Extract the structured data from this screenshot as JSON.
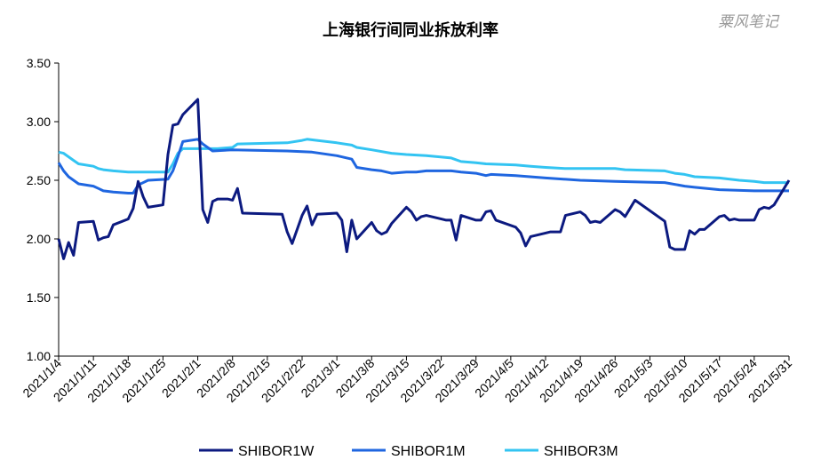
{
  "watermark": "粟风笔记",
  "colors": {
    "SHIBOR1W": "#0c1a80",
    "SHIBOR1M": "#1f66e0",
    "SHIBOR3M": "#33c4f2",
    "axis": "#000000"
  },
  "chart_data": {
    "type": "line",
    "title": "上海银行间同业拆放利率",
    "xlabel": "",
    "ylabel": "",
    "ylim": [
      1.0,
      3.5
    ],
    "yticks": [
      "1.00",
      "1.50",
      "2.00",
      "2.50",
      "3.00",
      "3.50"
    ],
    "xlim": [
      "2021-01-04",
      "2021-05-31"
    ],
    "xticks": [
      "2021/1/4",
      "2021/1/11",
      "2021/1/18",
      "2021/1/25",
      "2021/2/1",
      "2021/2/8",
      "2021/2/15",
      "2021/2/22",
      "2021/3/1",
      "2021/3/8",
      "2021/3/15",
      "2021/3/22",
      "2021/3/29",
      "2021/4/5",
      "2021/4/12",
      "2021/4/19",
      "2021/4/26",
      "2021/5/3",
      "2021/5/10",
      "2021/5/17",
      "2021/5/24",
      "2021/5/31"
    ],
    "grid": false,
    "legend": "bottom",
    "series": [
      {
        "name": "SHIBOR1W",
        "points": [
          [
            "2021-01-04",
            2.0
          ],
          [
            "2021-01-05",
            1.83
          ],
          [
            "2021-01-06",
            1.97
          ],
          [
            "2021-01-07",
            1.86
          ],
          [
            "2021-01-08",
            2.14
          ],
          [
            "2021-01-11",
            2.15
          ],
          [
            "2021-01-12",
            1.99
          ],
          [
            "2021-01-13",
            2.01
          ],
          [
            "2021-01-14",
            2.02
          ],
          [
            "2021-01-15",
            2.12
          ],
          [
            "2021-01-18",
            2.17
          ],
          [
            "2021-01-19",
            2.26
          ],
          [
            "2021-01-20",
            2.49
          ],
          [
            "2021-01-21",
            2.36
          ],
          [
            "2021-01-22",
            2.27
          ],
          [
            "2021-01-25",
            2.29
          ],
          [
            "2021-01-26",
            2.72
          ],
          [
            "2021-01-27",
            2.97
          ],
          [
            "2021-01-28",
            2.98
          ],
          [
            "2021-01-29",
            3.06
          ],
          [
            "2021-02-01",
            3.19
          ],
          [
            "2021-02-02",
            2.25
          ],
          [
            "2021-02-03",
            2.14
          ],
          [
            "2021-02-04",
            2.32
          ],
          [
            "2021-02-05",
            2.34
          ],
          [
            "2021-02-07",
            2.34
          ],
          [
            "2021-02-08",
            2.33
          ],
          [
            "2021-02-09",
            2.43
          ],
          [
            "2021-02-10",
            2.22
          ],
          [
            "2021-02-18",
            2.21
          ],
          [
            "2021-02-19",
            2.06
          ],
          [
            "2021-02-20",
            1.96
          ],
          [
            "2021-02-22",
            2.2
          ],
          [
            "2021-02-23",
            2.28
          ],
          [
            "2021-02-24",
            2.12
          ],
          [
            "2021-02-25",
            2.21
          ],
          [
            "2021-03-01",
            2.22
          ],
          [
            "2021-03-02",
            2.16
          ],
          [
            "2021-03-03",
            1.89
          ],
          [
            "2021-03-04",
            2.16
          ],
          [
            "2021-03-05",
            2.0
          ],
          [
            "2021-03-08",
            2.14
          ],
          [
            "2021-03-09",
            2.07
          ],
          [
            "2021-03-10",
            2.04
          ],
          [
            "2021-03-11",
            2.06
          ],
          [
            "2021-03-12",
            2.13
          ],
          [
            "2021-03-15",
            2.27
          ],
          [
            "2021-03-16",
            2.23
          ],
          [
            "2021-03-17",
            2.16
          ],
          [
            "2021-03-18",
            2.19
          ],
          [
            "2021-03-19",
            2.2
          ],
          [
            "2021-03-22",
            2.17
          ],
          [
            "2021-03-23",
            2.16
          ],
          [
            "2021-03-24",
            2.16
          ],
          [
            "2021-03-25",
            1.99
          ],
          [
            "2021-03-26",
            2.2
          ],
          [
            "2021-03-29",
            2.16
          ],
          [
            "2021-03-30",
            2.16
          ],
          [
            "2021-03-31",
            2.23
          ],
          [
            "2021-04-01",
            2.24
          ],
          [
            "2021-04-02",
            2.16
          ],
          [
            "2021-04-06",
            2.1
          ],
          [
            "2021-04-07",
            2.05
          ],
          [
            "2021-04-08",
            1.94
          ],
          [
            "2021-04-09",
            2.02
          ],
          [
            "2021-04-12",
            2.05
          ],
          [
            "2021-04-13",
            2.06
          ],
          [
            "2021-04-14",
            2.06
          ],
          [
            "2021-04-15",
            2.06
          ],
          [
            "2021-04-16",
            2.2
          ],
          [
            "2021-04-19",
            2.23
          ],
          [
            "2021-04-20",
            2.2
          ],
          [
            "2021-04-21",
            2.14
          ],
          [
            "2021-04-22",
            2.15
          ],
          [
            "2021-04-23",
            2.14
          ],
          [
            "2021-04-26",
            2.25
          ],
          [
            "2021-04-27",
            2.23
          ],
          [
            "2021-04-28",
            2.19
          ],
          [
            "2021-04-29",
            2.26
          ],
          [
            "2021-04-30",
            2.33
          ],
          [
            "2021-05-06",
            2.15
          ],
          [
            "2021-05-07",
            1.93
          ],
          [
            "2021-05-08",
            1.91
          ],
          [
            "2021-05-10",
            1.91
          ],
          [
            "2021-05-11",
            2.07
          ],
          [
            "2021-05-12",
            2.04
          ],
          [
            "2021-05-13",
            2.08
          ],
          [
            "2021-05-14",
            2.08
          ],
          [
            "2021-05-17",
            2.19
          ],
          [
            "2021-05-18",
            2.2
          ],
          [
            "2021-05-19",
            2.16
          ],
          [
            "2021-05-20",
            2.17
          ],
          [
            "2021-05-21",
            2.16
          ],
          [
            "2021-05-24",
            2.16
          ],
          [
            "2021-05-25",
            2.25
          ],
          [
            "2021-05-26",
            2.27
          ],
          [
            "2021-05-27",
            2.26
          ],
          [
            "2021-05-28",
            2.29
          ],
          [
            "2021-05-31",
            2.5
          ]
        ]
      },
      {
        "name": "SHIBOR1M",
        "points": [
          [
            "2021-01-04",
            2.65
          ],
          [
            "2021-01-05",
            2.58
          ],
          [
            "2021-01-06",
            2.53
          ],
          [
            "2021-01-07",
            2.5
          ],
          [
            "2021-01-08",
            2.47
          ],
          [
            "2021-01-11",
            2.45
          ],
          [
            "2021-01-12",
            2.43
          ],
          [
            "2021-01-13",
            2.41
          ],
          [
            "2021-01-15",
            2.4
          ],
          [
            "2021-01-18",
            2.39
          ],
          [
            "2021-01-19",
            2.39
          ],
          [
            "2021-01-20",
            2.46
          ],
          [
            "2021-01-22",
            2.5
          ],
          [
            "2021-01-26",
            2.51
          ],
          [
            "2021-01-27",
            2.58
          ],
          [
            "2021-01-28",
            2.7
          ],
          [
            "2021-01-29",
            2.83
          ],
          [
            "2021-02-01",
            2.85
          ],
          [
            "2021-02-02",
            2.81
          ],
          [
            "2021-02-04",
            2.75
          ],
          [
            "2021-02-08",
            2.76
          ],
          [
            "2021-02-19",
            2.75
          ],
          [
            "2021-02-24",
            2.74
          ],
          [
            "2021-03-01",
            2.71
          ],
          [
            "2021-03-04",
            2.68
          ],
          [
            "2021-03-05",
            2.61
          ],
          [
            "2021-03-08",
            2.59
          ],
          [
            "2021-03-10",
            2.58
          ],
          [
            "2021-03-12",
            2.56
          ],
          [
            "2021-03-15",
            2.57
          ],
          [
            "2021-03-17",
            2.57
          ],
          [
            "2021-03-19",
            2.58
          ],
          [
            "2021-03-22",
            2.58
          ],
          [
            "2021-03-24",
            2.58
          ],
          [
            "2021-03-26",
            2.57
          ],
          [
            "2021-03-29",
            2.56
          ],
          [
            "2021-03-31",
            2.54
          ],
          [
            "2021-04-01",
            2.55
          ],
          [
            "2021-04-06",
            2.54
          ],
          [
            "2021-04-12",
            2.52
          ],
          [
            "2021-04-19",
            2.5
          ],
          [
            "2021-04-26",
            2.49
          ],
          [
            "2021-05-06",
            2.48
          ],
          [
            "2021-05-10",
            2.45
          ],
          [
            "2021-05-12",
            2.44
          ],
          [
            "2021-05-17",
            2.42
          ],
          [
            "2021-05-24",
            2.41
          ],
          [
            "2021-05-31",
            2.41
          ]
        ]
      },
      {
        "name": "SHIBOR3M",
        "points": [
          [
            "2021-01-04",
            2.74
          ],
          [
            "2021-01-05",
            2.73
          ],
          [
            "2021-01-06",
            2.7
          ],
          [
            "2021-01-07",
            2.67
          ],
          [
            "2021-01-08",
            2.64
          ],
          [
            "2021-01-11",
            2.62
          ],
          [
            "2021-01-12",
            2.6
          ],
          [
            "2021-01-13",
            2.59
          ],
          [
            "2021-01-15",
            2.58
          ],
          [
            "2021-01-18",
            2.57
          ],
          [
            "2021-01-26",
            2.57
          ],
          [
            "2021-01-27",
            2.64
          ],
          [
            "2021-01-28",
            2.73
          ],
          [
            "2021-01-29",
            2.77
          ],
          [
            "2021-02-01",
            2.77
          ],
          [
            "2021-02-04",
            2.77
          ],
          [
            "2021-02-05",
            2.77
          ],
          [
            "2021-02-08",
            2.78
          ],
          [
            "2021-02-09",
            2.81
          ],
          [
            "2021-02-19",
            2.82
          ],
          [
            "2021-02-22",
            2.84
          ],
          [
            "2021-02-23",
            2.85
          ],
          [
            "2021-02-25",
            2.84
          ],
          [
            "2021-03-01",
            2.82
          ],
          [
            "2021-03-04",
            2.8
          ],
          [
            "2021-03-05",
            2.78
          ],
          [
            "2021-03-08",
            2.76
          ],
          [
            "2021-03-12",
            2.73
          ],
          [
            "2021-03-15",
            2.72
          ],
          [
            "2021-03-19",
            2.71
          ],
          [
            "2021-03-24",
            2.69
          ],
          [
            "2021-03-26",
            2.66
          ],
          [
            "2021-03-29",
            2.65
          ],
          [
            "2021-03-31",
            2.64
          ],
          [
            "2021-04-06",
            2.63
          ],
          [
            "2021-04-09",
            2.62
          ],
          [
            "2021-04-12",
            2.61
          ],
          [
            "2021-04-16",
            2.6
          ],
          [
            "2021-04-19",
            2.6
          ],
          [
            "2021-04-26",
            2.6
          ],
          [
            "2021-04-28",
            2.59
          ],
          [
            "2021-05-06",
            2.58
          ],
          [
            "2021-05-08",
            2.56
          ],
          [
            "2021-05-10",
            2.55
          ],
          [
            "2021-05-12",
            2.53
          ],
          [
            "2021-05-17",
            2.52
          ],
          [
            "2021-05-21",
            2.5
          ],
          [
            "2021-05-24",
            2.49
          ],
          [
            "2021-05-26",
            2.48
          ],
          [
            "2021-05-31",
            2.48
          ]
        ]
      }
    ]
  }
}
